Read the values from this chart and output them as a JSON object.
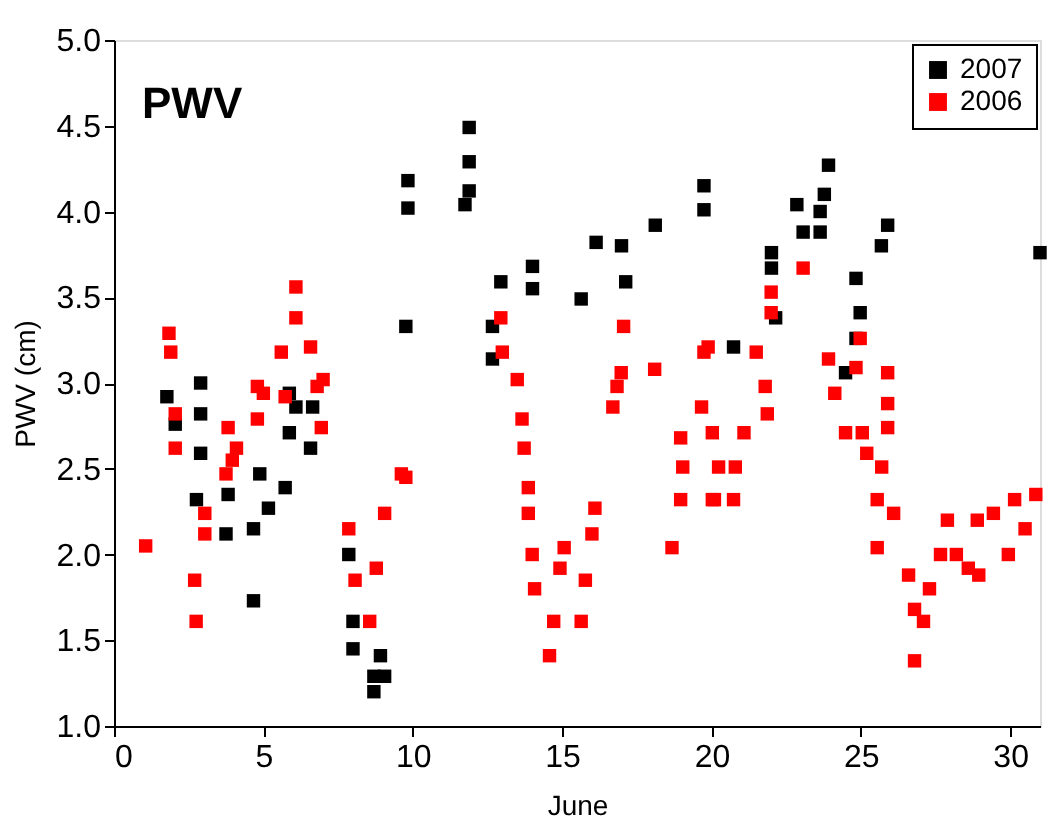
{
  "chart_data": {
    "type": "scatter",
    "title": "PWV",
    "xlabel": "June",
    "ylabel": "PWV (cm)",
    "xlim": [
      0,
      31
    ],
    "xticks": [
      0,
      5,
      10,
      15,
      20,
      25,
      30
    ],
    "ylim": [
      1.0,
      5.0
    ],
    "yticks": [
      {
        "value": 1.0,
        "label": "1.0"
      },
      {
        "value": 1.5,
        "label": "1.5"
      },
      {
        "value": 2.0,
        "label": "2.0"
      },
      {
        "value": 2.5,
        "label": "2.5"
      },
      {
        "value": 3.0,
        "label": "3.0"
      },
      {
        "value": 3.5,
        "label": "3.5"
      },
      {
        "value": 4.0,
        "label": "4.0"
      },
      {
        "value": 4.5,
        "label": "4.5"
      },
      {
        "value": 5.0,
        "label": "5.0"
      }
    ],
    "marker": "square",
    "grid": false,
    "legend": "top right",
    "series": [
      {
        "name": "2007",
        "color": "#000000",
        "x": [
          1.77,
          2.05,
          2.9,
          2.9,
          2.9,
          2.76,
          3.75,
          3.82,
          4.67,
          4.67,
          4.88,
          5.17,
          5.73,
          5.87,
          6.09,
          5.87,
          6.58,
          6.65,
          7.86,
          8.0,
          8.0,
          8.7,
          8.7,
          9.06,
          8.92,
          9.77,
          9.84,
          9.84,
          11.89,
          11.89,
          11.89,
          11.75,
          12.95,
          12.67,
          12.67,
          14.01,
          14.01,
          15.64,
          16.14,
          16.99,
          17.13,
          18.12,
          19.75,
          19.75,
          20.74,
          22.01,
          22.01,
          22.15,
          22.86,
          23.07,
          23.64,
          23.64,
          23.92,
          23.78,
          24.84,
          24.98,
          24.84,
          24.49,
          25.69,
          25.9,
          31.0
        ],
        "values": [
          2.92,
          2.76,
          3.0,
          2.82,
          2.59,
          2.32,
          2.12,
          2.35,
          1.73,
          2.15,
          2.47,
          2.27,
          2.39,
          2.71,
          2.86,
          2.94,
          2.62,
          2.86,
          2.0,
          1.61,
          1.45,
          1.29,
          1.2,
          1.29,
          1.41,
          3.33,
          4.18,
          4.02,
          4.49,
          4.29,
          4.12,
          4.04,
          3.59,
          3.33,
          3.14,
          3.68,
          3.55,
          3.49,
          3.82,
          3.8,
          3.59,
          3.92,
          4.15,
          4.01,
          3.21,
          3.76,
          3.67,
          3.38,
          4.04,
          3.88,
          4.0,
          3.88,
          4.27,
          4.1,
          3.61,
          3.41,
          3.26,
          3.06,
          3.8,
          3.92,
          3.76
        ]
      },
      {
        "name": "2006",
        "color": "#ff0000",
        "x": [
          1.06,
          1.84,
          1.9,
          2.05,
          2.05,
          2.7,
          2.75,
          3.04,
          3.04,
          3.82,
          3.96,
          3.75,
          4.1,
          4.8,
          4.8,
          5.0,
          5.6,
          5.73,
          6.09,
          6.09,
          6.58,
          6.8,
          6.94,
          7.0,
          7.86,
          8.07,
          8.56,
          8.78,
          9.06,
          9.62,
          9.77,
          12.95,
          13.0,
          13.5,
          13.66,
          13.73,
          13.87,
          13.87,
          14.0,
          14.08,
          14.58,
          14.72,
          14.93,
          15.07,
          15.64,
          15.78,
          16.0,
          16.1,
          16.7,
          16.84,
          16.98,
          17.06,
          18.1,
          18.68,
          18.97,
          19.04,
          18.97,
          19.67,
          19.75,
          20.03,
          20.03,
          19.89,
          20.24,
          20.1,
          20.74,
          20.8,
          21.09,
          21.5,
          21.8,
          21.87,
          22.0,
          22.0,
          23.07,
          23.92,
          24.13,
          24.49,
          24.84,
          24.98,
          25.05,
          25.2,
          25.9,
          25.9,
          25.9,
          25.7,
          25.55,
          25.55,
          26.1,
          26.6,
          26.8,
          26.8,
          27.1,
          27.3,
          27.67,
          27.9,
          28.2,
          28.6,
          28.9,
          28.95,
          29.44,
          29.94,
          30.15,
          30.5,
          30.86
        ],
        "values": [
          2.05,
          3.29,
          3.18,
          2.82,
          2.62,
          1.85,
          1.61,
          2.12,
          2.24,
          2.74,
          2.55,
          2.47,
          2.62,
          2.79,
          2.98,
          2.94,
          3.18,
          2.92,
          3.56,
          3.38,
          3.21,
          2.98,
          2.74,
          3.02,
          2.15,
          1.85,
          1.61,
          1.92,
          2.24,
          2.47,
          2.45,
          3.38,
          3.18,
          3.02,
          2.79,
          2.62,
          2.39,
          2.24,
          2.0,
          1.8,
          1.41,
          1.61,
          1.92,
          2.04,
          1.61,
          1.85,
          2.12,
          2.27,
          2.86,
          2.98,
          3.06,
          3.33,
          3.08,
          2.04,
          2.32,
          2.51,
          2.68,
          2.86,
          3.18,
          2.71,
          2.32,
          3.21,
          2.51,
          2.32,
          2.32,
          2.51,
          2.71,
          3.18,
          2.98,
          2.82,
          3.53,
          3.41,
          3.67,
          3.14,
          2.94,
          2.71,
          3.09,
          3.26,
          2.71,
          2.59,
          3.06,
          2.88,
          2.74,
          2.51,
          2.32,
          2.04,
          2.24,
          1.88,
          1.68,
          1.38,
          1.61,
          1.8,
          2.0,
          2.2,
          2.0,
          1.92,
          2.2,
          1.88,
          2.24,
          2.0,
          2.32,
          2.15,
          2.35
        ]
      }
    ]
  }
}
